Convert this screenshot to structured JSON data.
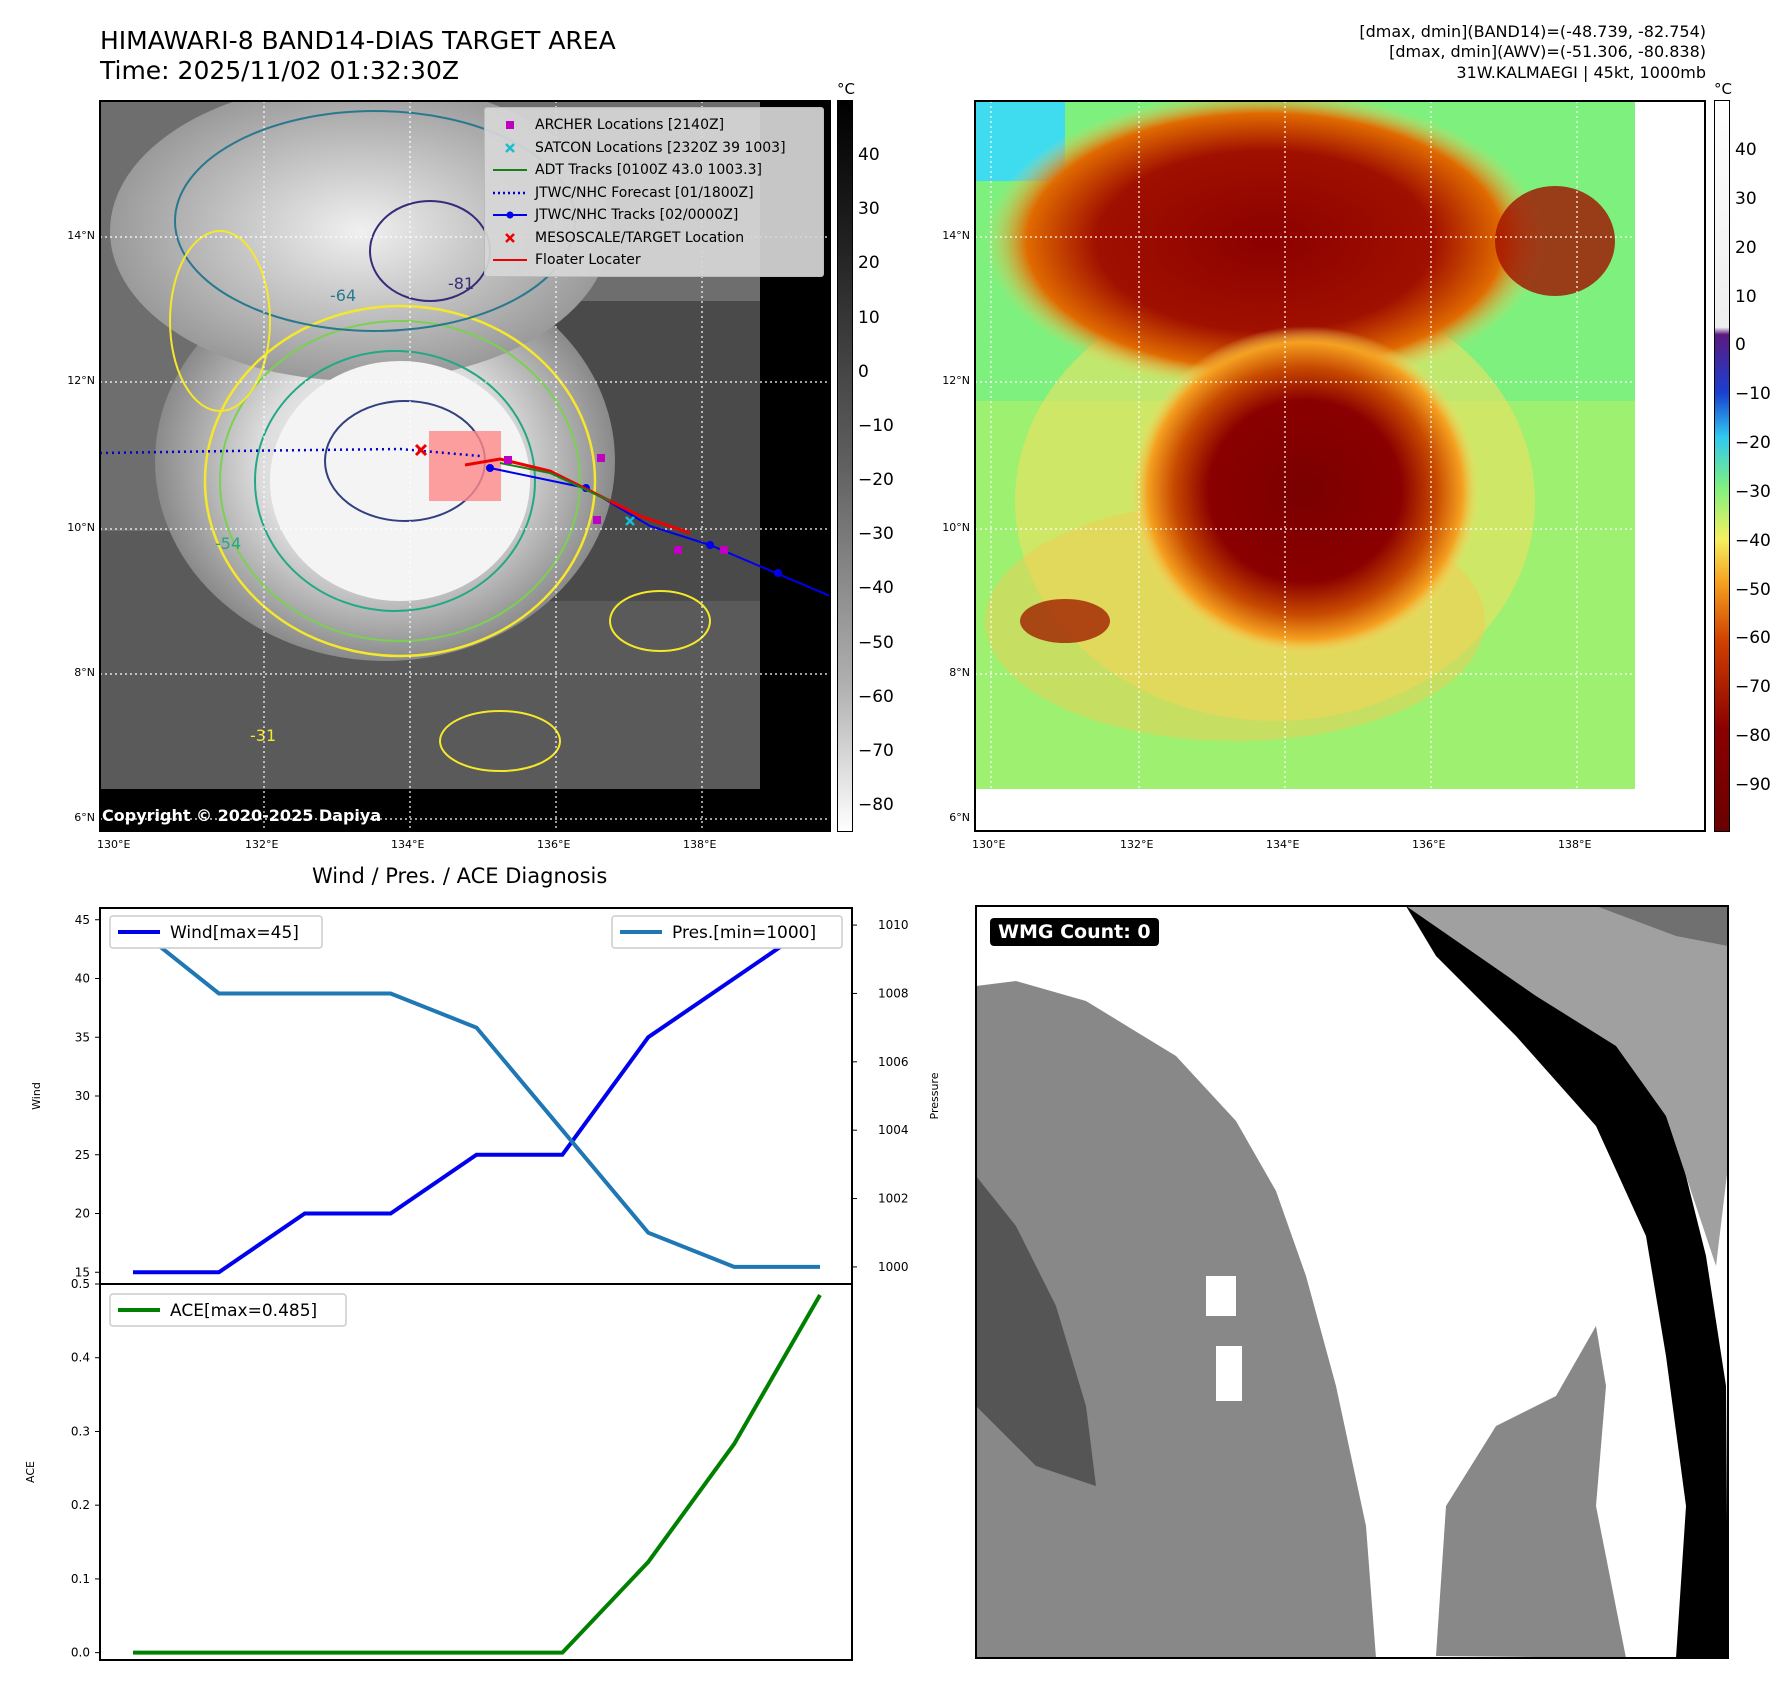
{
  "header": {
    "title_line1": "HIMAWARI-8 BAND14-DIAS TARGET AREA",
    "title_line2": "Time: 2025/11/02 01:32:30Z",
    "info_line1": "[dmax, dmin](BAND14)=(-48.739, -82.754)",
    "info_line2": "[dmax, dmin](AWV)=(-51.306, -80.838)",
    "info_line3": "31W.KALMAEGI | 45kt, 1000mb"
  },
  "map": {
    "lat_labels": [
      "14°N",
      "12°N",
      "10°N",
      "8°N",
      "6°N"
    ],
    "lon_labels": [
      "130°E",
      "132°E",
      "134°E",
      "136°E",
      "138°E"
    ],
    "copyright": "Copyright © 2020-2025 Dapiya",
    "contour_labels": [
      "-31",
      "-54",
      "-64",
      "-81"
    ],
    "legend": [
      {
        "label": "ARCHER Locations [2140Z]",
        "symbol": "square",
        "color": "#c000c0"
      },
      {
        "label": "SATCON Locations [2320Z 39 1003]",
        "symbol": "x",
        "color": "#17becf"
      },
      {
        "label": "ADT Tracks [0100Z 43.0 1003.3]",
        "symbol": "line",
        "color": "#1a7f1a"
      },
      {
        "label": "JTWC/NHC Forecast [01/1800Z]",
        "symbol": "dotted",
        "color": "#0000cc"
      },
      {
        "label": "JTWC/NHC Tracks [02/0000Z]",
        "symbol": "line-dot",
        "color": "#0000ee"
      },
      {
        "label": "MESOSCALE/TARGET Location",
        "symbol": "x",
        "color": "#ee0000"
      },
      {
        "label": "Floater Locater",
        "symbol": "line",
        "color": "#ee0000"
      }
    ]
  },
  "colorbar_gray": {
    "unit": "°C",
    "ticks": [
      "40",
      "30",
      "20",
      "10",
      "0",
      "−10",
      "−20",
      "−30",
      "−40",
      "−50",
      "−60",
      "−70",
      "−80"
    ]
  },
  "colorbar_color": {
    "unit": "°C",
    "ticks": [
      "40",
      "30",
      "20",
      "10",
      "0",
      "−10",
      "−20",
      "−30",
      "−40",
      "−50",
      "−60",
      "−70",
      "−80",
      "−90"
    ]
  },
  "wmg": {
    "label": "WMG Count: 0"
  },
  "chart_data": [
    {
      "type": "line",
      "title": "Wind / Pres. / ACE Diagnosis",
      "x": [
        0,
        1,
        2,
        3,
        4,
        5,
        6,
        7,
        8
      ],
      "series": [
        {
          "name": "Wind[max=45]",
          "axis": "left",
          "color": "#0000ee",
          "values": [
            15,
            15,
            20,
            20,
            25,
            25,
            35,
            40,
            45
          ]
        },
        {
          "name": "Pres.[min=1000]",
          "axis": "right",
          "color": "#1f77b4",
          "values": [
            1010,
            1008,
            1008,
            1008,
            1007,
            1004,
            1001,
            1000,
            1000
          ]
        }
      ],
      "ylabel": "Wind",
      "ylim": [
        14,
        46
      ],
      "yticks": [
        "45",
        "40",
        "35",
        "30",
        "25",
        "20",
        "15"
      ],
      "y2label": "Pressure",
      "y2lim": [
        999.5,
        1010.5
      ],
      "y2ticks": [
        "1010",
        "1008",
        "1006",
        "1004",
        "1002",
        "1000"
      ]
    },
    {
      "type": "line",
      "x": [
        0,
        1,
        2,
        3,
        4,
        5,
        6,
        7,
        8
      ],
      "series": [
        {
          "name": "ACE[max=0.485]",
          "color": "#008000",
          "values": [
            0,
            0,
            0,
            0,
            0,
            0,
            0.123,
            0.283,
            0.485
          ]
        }
      ],
      "ylabel": "ACE",
      "ylim": [
        -0.01,
        0.5
      ],
      "yticks": [
        "0.5",
        "0.4",
        "0.3",
        "0.2",
        "0.1",
        "0.0"
      ]
    }
  ]
}
